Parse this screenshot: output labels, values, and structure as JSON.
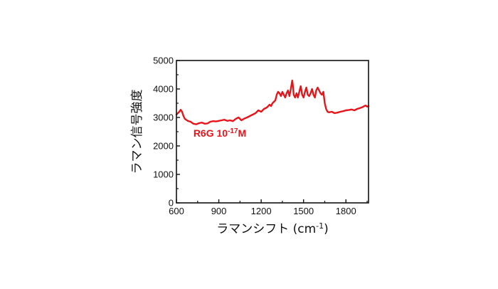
{
  "chart_data": {
    "type": "line",
    "title": "",
    "xlabel": "ラマンシフト (cm",
    "xlabel_sup": "-1",
    "xlabel_end": ")",
    "ylabel": "ラマン信号強度",
    "xlim": [
      600,
      1960
    ],
    "ylim": [
      0,
      5000
    ],
    "x_ticks": [
      600,
      900,
      1200,
      1500,
      1800
    ],
    "x_tick_labels": [
      "600",
      "900",
      "1200",
      "1500",
      "1800"
    ],
    "y_ticks": [
      0,
      1000,
      2000,
      3000,
      4000,
      5000
    ],
    "y_tick_labels": [
      "0",
      "1000",
      "2000",
      "3000",
      "4000",
      "5000"
    ],
    "grid": false,
    "legend": "none",
    "line_color": "#e8141a",
    "annotation": {
      "text": "R6G 10",
      "sup": "-17",
      "suffix": "M",
      "color": "#e8141a",
      "x": 720,
      "y": 2330
    },
    "series": [
      {
        "x": [
          600,
          610,
          620,
          630,
          640,
          650,
          660,
          680,
          700,
          720,
          740,
          760,
          780,
          800,
          820,
          840,
          860,
          880,
          900,
          920,
          940,
          960,
          980,
          1000,
          1020,
          1040,
          1060,
          1080,
          1100,
          1120,
          1140,
          1160,
          1180,
          1200,
          1220,
          1240,
          1260,
          1270,
          1280,
          1290,
          1300,
          1310,
          1320,
          1330,
          1340,
          1350,
          1360,
          1370,
          1380,
          1390,
          1400,
          1410,
          1420,
          1425,
          1430,
          1440,
          1450,
          1460,
          1470,
          1480,
          1490,
          1500,
          1510,
          1520,
          1530,
          1540,
          1550,
          1560,
          1570,
          1580,
          1590,
          1600,
          1610,
          1620,
          1630,
          1640,
          1650,
          1660,
          1670,
          1680,
          1700,
          1720,
          1740,
          1760,
          1780,
          1800,
          1820,
          1840,
          1860,
          1880,
          1900,
          1910,
          1920,
          1930,
          1940,
          1950,
          1960
        ],
        "y": [
          3100,
          3150,
          3200,
          3270,
          3200,
          3050,
          2950,
          2880,
          2850,
          2780,
          2760,
          2800,
          2820,
          2780,
          2790,
          2850,
          2870,
          2860,
          2880,
          2900,
          2920,
          2880,
          2900,
          2870,
          2950,
          3000,
          2900,
          2960,
          3000,
          3050,
          3100,
          3150,
          3250,
          3200,
          3300,
          3350,
          3450,
          3400,
          3500,
          3550,
          3600,
          3800,
          3900,
          3850,
          3750,
          3900,
          3800,
          3700,
          3850,
          3950,
          3750,
          4000,
          4300,
          4100,
          3800,
          3700,
          3850,
          3700,
          3900,
          4100,
          3800,
          3700,
          3900,
          4050,
          3800,
          3750,
          3850,
          4000,
          3800,
          3700,
          3950,
          4050,
          3950,
          3850,
          3800,
          3900,
          3500,
          3300,
          3200,
          3180,
          3200,
          3150,
          3170,
          3200,
          3220,
          3250,
          3260,
          3280,
          3250,
          3300,
          3330,
          3350,
          3370,
          3400,
          3420,
          3380,
          3400
        ]
      }
    ]
  }
}
